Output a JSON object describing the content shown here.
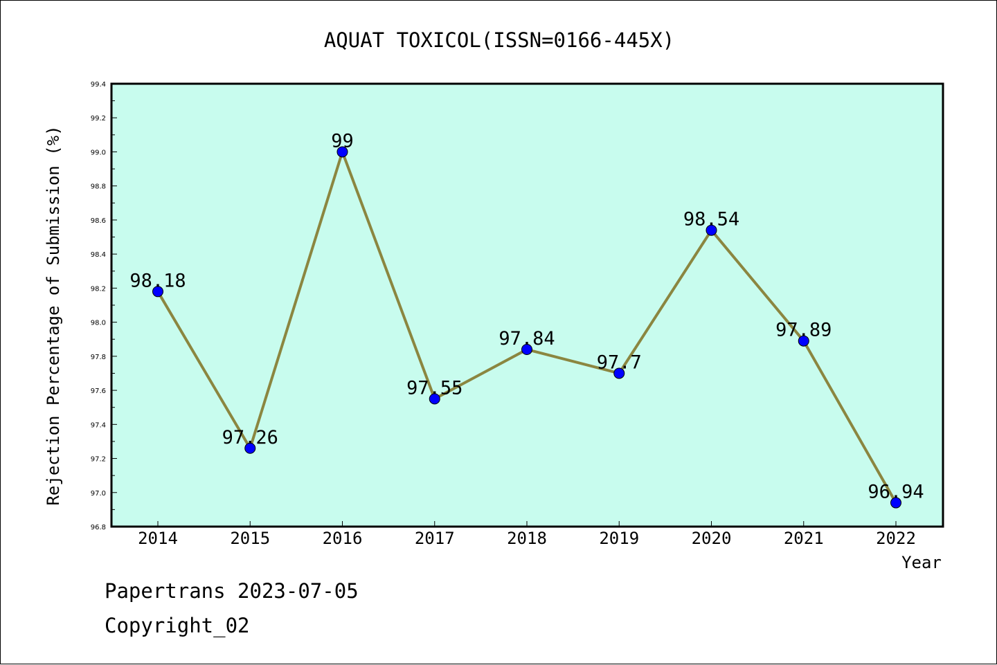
{
  "chart_data": {
    "type": "line",
    "title": "AQUAT TOXICOL(ISSN=0166-445X)",
    "xlabel": "Year",
    "ylabel": "Rejection Percentage of Submission (%)",
    "categories": [
      "2014",
      "2015",
      "2016",
      "2017",
      "2018",
      "2019",
      "2020",
      "2021",
      "2022"
    ],
    "series": [
      {
        "values": [
          98.18,
          97.26,
          99,
          97.55,
          97.84,
          97.7,
          98.54,
          97.89,
          96.94
        ],
        "data_labels": [
          "98.18",
          "97.26",
          "99",
          "97.55",
          "97.84",
          "97.7",
          "98.54",
          "97.89",
          "96.94"
        ],
        "line_color": "#8b8640",
        "marker_color": "#0000ff"
      }
    ],
    "ylim": [
      96.8,
      99.4
    ],
    "yticks": [
      "96.8",
      "97.0",
      "97.2",
      "97.4",
      "97.6",
      "97.8",
      "98.0",
      "98.2",
      "98.4",
      "98.6",
      "98.8",
      "99.0",
      "99.2",
      "99.4"
    ],
    "grid": false,
    "plot_background": "#c8fcee"
  },
  "footer": {
    "line1": "Papertrans 2023-07-05",
    "line2": "Copyright_02"
  }
}
